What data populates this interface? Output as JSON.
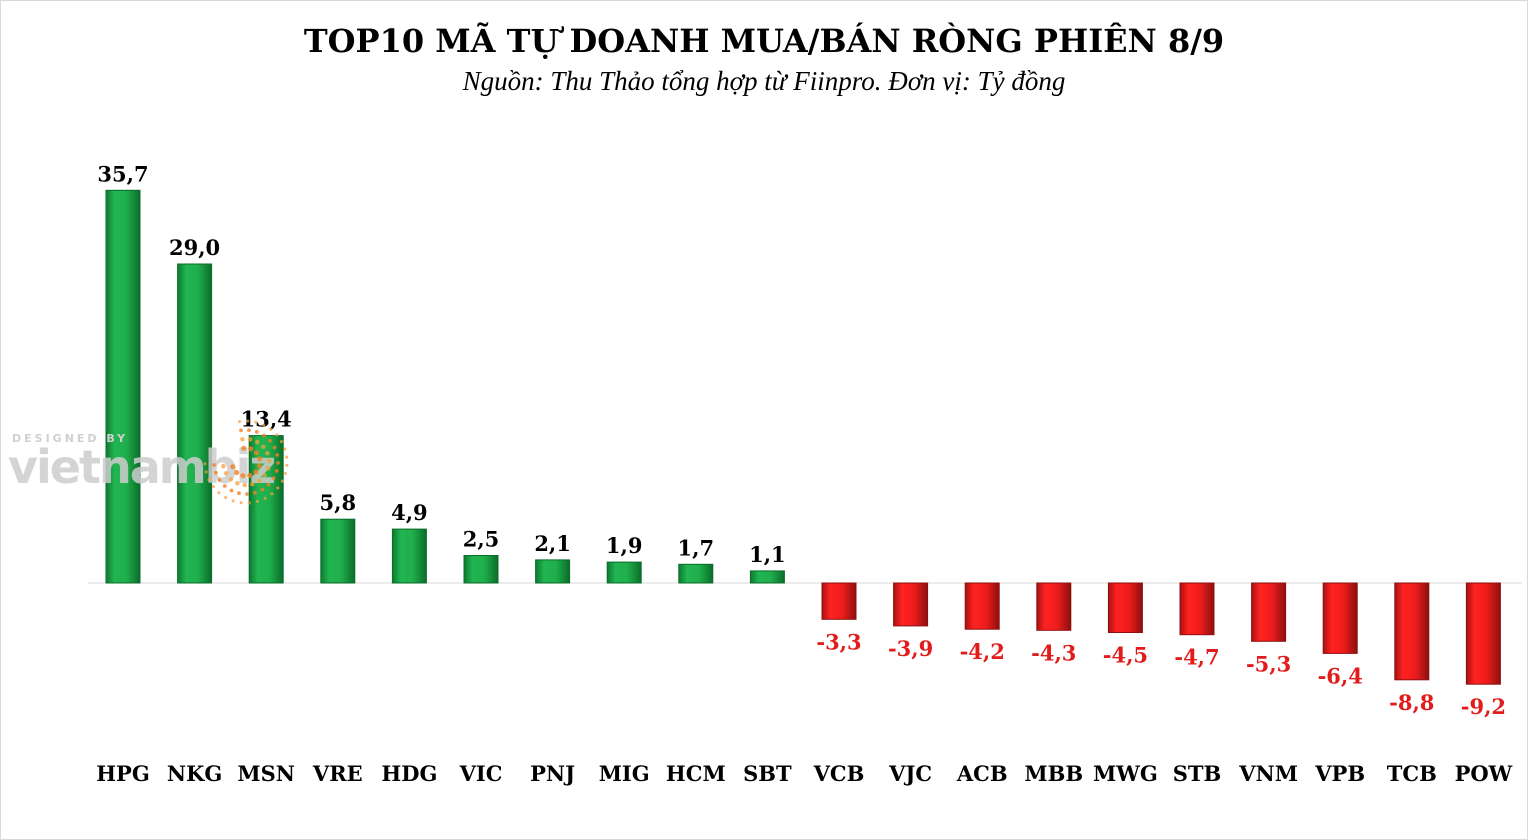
{
  "title": "TOP10 MÃ TỰ DOANH MUA/BÁN RÒNG PHIÊN 8/9",
  "subtitle": "Nguồn: Thu Thảo tổng hợp từ Fiinpro. Đơn vị: Tỷ đồng",
  "watermark": {
    "small": "DESIGNED BY",
    "brand": "vietnambiz"
  },
  "colors": {
    "positive": "#1fae4b",
    "positive_dark": "#0a6d2a",
    "negative": "#ee1c1c",
    "negative_dark": "#8e0f0f",
    "negative_label": "#e21b1b",
    "positive_label": "#000000"
  },
  "chart_data": {
    "type": "bar",
    "title": "TOP10 MÃ TỰ DOANH MUA/BÁN RÒNG PHIÊN 8/9",
    "subtitle": "Nguồn: Thu Thảo tổng hợp từ Fiinpro. Đơn vị: Tỷ đồng",
    "categories": [
      "HPG",
      "NKG",
      "MSN",
      "VRE",
      "HDG",
      "VIC",
      "PNJ",
      "MIG",
      "HCM",
      "SBT",
      "VCB",
      "VJC",
      "ACB",
      "MBB",
      "MWG",
      "STB",
      "VNM",
      "VPB",
      "TCB",
      "POW"
    ],
    "values": [
      35.7,
      29.0,
      13.4,
      5.8,
      4.9,
      2.5,
      2.1,
      1.9,
      1.7,
      1.1,
      -3.3,
      -3.9,
      -4.2,
      -4.3,
      -4.5,
      -4.7,
      -5.3,
      -6.4,
      -8.8,
      -9.2
    ],
    "labels": [
      "35,7",
      "29,0",
      "13,4",
      "5,8",
      "4,9",
      "2,5",
      "2,1",
      "1,9",
      "1,7",
      "1,1",
      "-3,3",
      "-3,9",
      "-4,2",
      "-4,3",
      "-4,5",
      "-4,7",
      "-5,3",
      "-6,4",
      "-8,8",
      "-9,2"
    ],
    "xlabel": "",
    "ylabel": "",
    "ylim": [
      -10,
      36
    ],
    "grid": false,
    "legend": "none"
  }
}
